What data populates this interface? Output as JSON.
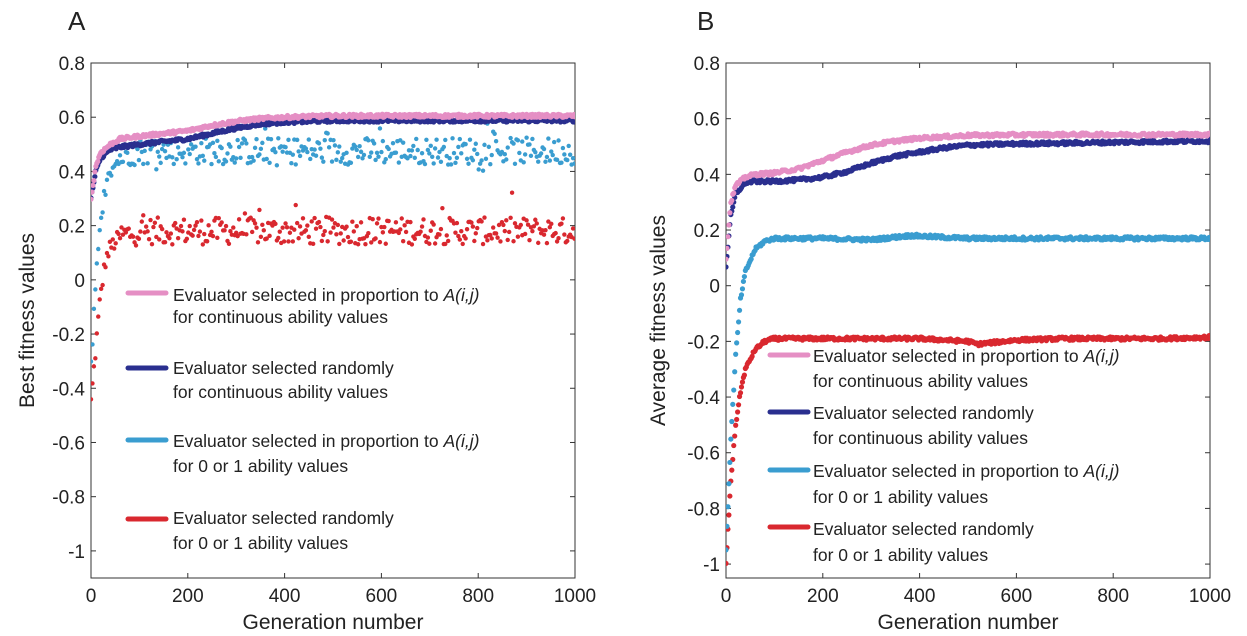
{
  "chart_data": [
    {
      "type": "scatter",
      "panel_label": "A",
      "xlabel": "Generation number",
      "ylabel": "Best fitness values",
      "xlim": [
        0,
        1000
      ],
      "ylim": [
        -1.1,
        0.8
      ],
      "xticks": [
        0,
        200,
        400,
        600,
        800,
        1000
      ],
      "yticks": [
        0.8,
        0.6,
        0.4,
        0.2,
        0,
        -0.2,
        -0.4,
        -0.6,
        -0.8,
        -1
      ],
      "ytick_labels": [
        "0.8",
        "0.6",
        "0.4",
        "0.2",
        "0",
        "-0.2",
        "-0.4",
        "-0.6",
        "-0.8",
        "-1"
      ],
      "xtick_labels": [
        "0",
        "200",
        "400",
        "600",
        "800",
        "1000"
      ],
      "legend_placement": "center",
      "series": [
        {
          "name": "Evaluator selected in proportion to A(i,j) for continuous ability values",
          "legend_line1": "Evaluator selected in proportion to ",
          "legend_line1_italic": "A(i,j)",
          "legend_line2": "for continuous ability values",
          "color": "#e58fc4",
          "x": [
            0,
            10,
            20,
            40,
            60,
            100,
            150,
            200,
            250,
            300,
            350,
            400,
            450,
            500,
            600,
            700,
            800,
            900,
            1000
          ],
          "y": [
            0.3,
            0.42,
            0.47,
            0.5,
            0.52,
            0.53,
            0.54,
            0.55,
            0.57,
            0.585,
            0.595,
            0.6,
            0.603,
            0.605,
            0.605,
            0.605,
            0.605,
            0.605,
            0.605
          ]
        },
        {
          "name": "Evaluator selected randomly for continuous ability values",
          "legend_line1": "Evaluator selected randomly",
          "legend_line1_italic": "",
          "legend_line2": "for continuous ability values",
          "color": "#2a2f8f",
          "x": [
            0,
            10,
            20,
            40,
            60,
            100,
            150,
            200,
            250,
            300,
            350,
            400,
            450,
            500,
            600,
            700,
            800,
            900,
            1000
          ],
          "y": [
            0.3,
            0.4,
            0.45,
            0.48,
            0.49,
            0.5,
            0.51,
            0.52,
            0.54,
            0.56,
            0.575,
            0.582,
            0.585,
            0.588,
            0.588,
            0.588,
            0.588,
            0.588,
            0.588
          ]
        },
        {
          "name": "Evaluator selected in proportion to A(i,j) for 0 or 1 ability values",
          "legend_line1": "Evaluator selected in proportion to ",
          "legend_line1_italic": "A(i,j)",
          "legend_line2": "for 0 or 1 ability values",
          "color": "#3a9dd0",
          "x": [
            0,
            10,
            20,
            30,
            40,
            60,
            80,
            100,
            150,
            200,
            300,
            400,
            500,
            600,
            700,
            800,
            900,
            1000
          ],
          "y": [
            -0.3,
            0.0,
            0.2,
            0.33,
            0.4,
            0.45,
            0.47,
            0.475,
            0.475,
            0.475,
            0.475,
            0.475,
            0.475,
            0.475,
            0.475,
            0.475,
            0.475,
            0.475
          ],
          "scatter_spread": 0.05
        },
        {
          "name": "Evaluator selected randomly for 0 or 1 ability values",
          "legend_line1": "Evaluator selected randomly",
          "legend_line1_italic": "",
          "legend_line2": "for 0 or 1 ability values",
          "color": "#d9282f",
          "x": [
            0,
            10,
            20,
            30,
            40,
            60,
            80,
            100,
            150,
            200,
            300,
            400,
            500,
            600,
            700,
            800,
            900,
            1000
          ],
          "y": [
            -0.45,
            -0.25,
            -0.05,
            0.07,
            0.12,
            0.16,
            0.17,
            0.18,
            0.18,
            0.18,
            0.18,
            0.18,
            0.18,
            0.18,
            0.18,
            0.18,
            0.18,
            0.18
          ],
          "scatter_spread": 0.05
        }
      ]
    },
    {
      "type": "scatter",
      "panel_label": "B",
      "xlabel": "Generation number",
      "ylabel": "Average fitness values",
      "xlim": [
        0,
        1000
      ],
      "ylim": [
        -1.05,
        0.8
      ],
      "xticks": [
        0,
        200,
        400,
        600,
        800,
        1000
      ],
      "yticks": [
        0.8,
        0.6,
        0.4,
        0.2,
        0,
        -0.2,
        -0.4,
        -0.6,
        -0.8,
        -1
      ],
      "ytick_labels": [
        "0.8",
        "0.6",
        "0.4",
        "0.2",
        "0",
        "-0.2",
        "-0.4",
        "-0.6",
        "-0.8",
        "-1"
      ],
      "xtick_labels": [
        "0",
        "200",
        "400",
        "600",
        "800",
        "1000"
      ],
      "legend_placement": "bottom",
      "series": [
        {
          "name": "Evaluator selected in proportion to A(i,j) for continuous ability values",
          "legend_line1": "Evaluator selected in proportion to ",
          "legend_line1_italic": "A(i,j)",
          "legend_line2": "for continuous ability values",
          "color": "#e58fc4",
          "x": [
            0,
            10,
            20,
            40,
            60,
            100,
            150,
            200,
            250,
            300,
            350,
            400,
            500,
            600,
            700,
            800,
            900,
            1000
          ],
          "y": [
            0.1,
            0.3,
            0.36,
            0.39,
            0.4,
            0.405,
            0.42,
            0.45,
            0.48,
            0.505,
            0.52,
            0.53,
            0.54,
            0.542,
            0.543,
            0.543,
            0.543,
            0.543
          ]
        },
        {
          "name": "Evaluator selected randomly for continuous ability values",
          "legend_line1": "Evaluator selected randomly",
          "legend_line1_italic": "",
          "legend_line2": "for continuous ability values",
          "color": "#2a2f8f",
          "x": [
            0,
            10,
            20,
            40,
            60,
            100,
            150,
            200,
            250,
            300,
            350,
            400,
            450,
            500,
            600,
            700,
            800,
            900,
            1000
          ],
          "y": [
            0.07,
            0.25,
            0.33,
            0.37,
            0.375,
            0.375,
            0.38,
            0.39,
            0.41,
            0.44,
            0.465,
            0.48,
            0.495,
            0.505,
            0.51,
            0.512,
            0.515,
            0.518,
            0.52
          ]
        },
        {
          "name": "Evaluator selected in proportion to A(i,j) for 0 or 1 ability values",
          "legend_line1": "Evaluator selected in proportion to ",
          "legend_line1_italic": "A(i,j)",
          "legend_line2": "for 0 or 1 ability values",
          "color": "#3a9dd0",
          "x": [
            0,
            10,
            20,
            30,
            40,
            60,
            80,
            100,
            150,
            200,
            300,
            380,
            500,
            600,
            700,
            800,
            900,
            1000
          ],
          "y": [
            -0.95,
            -0.55,
            -0.25,
            -0.05,
            0.05,
            0.13,
            0.16,
            0.17,
            0.17,
            0.17,
            0.165,
            0.18,
            0.17,
            0.17,
            0.17,
            0.17,
            0.17,
            0.17
          ]
        },
        {
          "name": "Evaluator selected randomly for 0 or 1 ability values",
          "legend_line1": "Evaluator selected randomly",
          "legend_line1_italic": "",
          "legend_line2": "for 0 or 1 ability values",
          "color": "#d9282f",
          "x": [
            0,
            10,
            20,
            30,
            40,
            60,
            80,
            100,
            150,
            200,
            300,
            400,
            500,
            520,
            600,
            700,
            800,
            900,
            1000
          ],
          "y": [
            -1.0,
            -0.7,
            -0.5,
            -0.38,
            -0.3,
            -0.23,
            -0.2,
            -0.19,
            -0.19,
            -0.19,
            -0.19,
            -0.19,
            -0.2,
            -0.21,
            -0.195,
            -0.19,
            -0.19,
            -0.19,
            -0.185
          ]
        }
      ]
    }
  ]
}
